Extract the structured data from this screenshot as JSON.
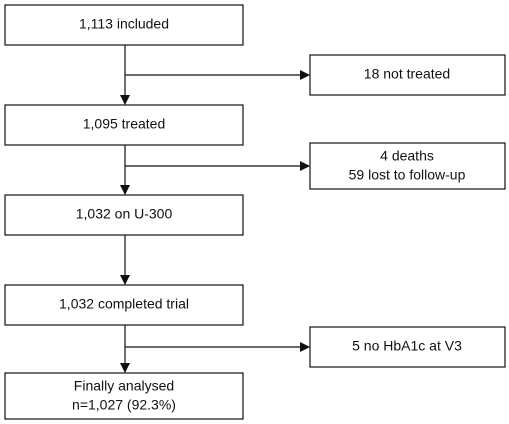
{
  "nodes": [
    {
      "lines": [
        "1,113 included"
      ]
    },
    {
      "lines": [
        "18 not treated"
      ]
    },
    {
      "lines": [
        "1,095 treated"
      ]
    },
    {
      "lines": [
        "4 deaths",
        "59 lost to follow-up"
      ]
    },
    {
      "lines": [
        "1,032 on U-300"
      ]
    },
    {
      "lines": [
        "1,032 completed trial"
      ]
    },
    {
      "lines": [
        "5 no HbA1c at V3"
      ]
    },
    {
      "lines": [
        "Finally analysed",
        "n=1,027 (92.3%)"
      ]
    }
  ]
}
